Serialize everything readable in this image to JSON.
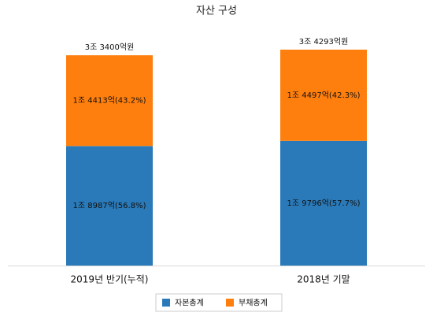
{
  "chart_data": {
    "type": "bar",
    "stacked": true,
    "title": "자산 구성",
    "categories": [
      "2019년 반기(누적)",
      "2018년 기말"
    ],
    "series": [
      {
        "name": "자본총계",
        "color": "#2a7ab9",
        "values": [
          18987,
          19796
        ],
        "value_labels": [
          "1조 8987억(56.8%)",
          "1조 9796억(57.7%)"
        ]
      },
      {
        "name": "부채총계",
        "color": "#ff7f0e",
        "values": [
          14413,
          14497
        ],
        "value_labels": [
          "1조 4413억(43.2%)",
          "1조 4497억(42.3%)"
        ]
      }
    ],
    "totals": [
      33400,
      34293
    ],
    "total_labels": [
      "3조 3400억원",
      "3조 4293억원"
    ]
  }
}
